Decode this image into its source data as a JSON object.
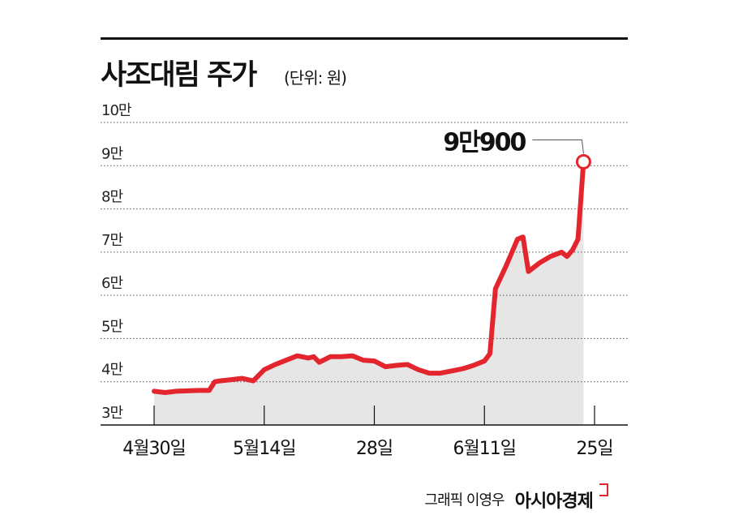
{
  "title": "사조대림 주가",
  "unit_label": "(단위: 원)",
  "credit": {
    "author": "그래픽 이영우",
    "brand": "아시아경제"
  },
  "colors": {
    "line": "#e3262d",
    "area": "#e6e6e6",
    "grid": "#555555",
    "axis": "#111111"
  },
  "chart_data": {
    "type": "area",
    "y_ticks": [
      {
        "value": 30000,
        "label": "3만"
      },
      {
        "value": 40000,
        "label": "4만"
      },
      {
        "value": 50000,
        "label": "5만"
      },
      {
        "value": 60000,
        "label": "6만"
      },
      {
        "value": 70000,
        "label": "7만"
      },
      {
        "value": 80000,
        "label": "8만"
      },
      {
        "value": 90000,
        "label": "9만"
      },
      {
        "value": 100000,
        "label": "10만"
      }
    ],
    "ylim": [
      30000,
      100000
    ],
    "x_ticks": [
      {
        "index": 0,
        "label": "4월30일"
      },
      {
        "index": 10,
        "label": "5월14일"
      },
      {
        "index": 20,
        "label": "28일"
      },
      {
        "index": 30,
        "label": "6월11일"
      },
      {
        "index": 40,
        "label": "25일"
      }
    ],
    "xlim": [
      0,
      40
    ],
    "series": [
      {
        "points": [
          [
            0,
            37800
          ],
          [
            1,
            37500
          ],
          [
            2,
            37800
          ],
          [
            3,
            37900
          ],
          [
            4,
            38000
          ],
          [
            5,
            38000
          ],
          [
            5.5,
            40000
          ],
          [
            6,
            40200
          ],
          [
            7,
            40500
          ],
          [
            8,
            40800
          ],
          [
            8.5,
            40500
          ],
          [
            9,
            40200
          ],
          [
            10,
            42800
          ],
          [
            11,
            44000
          ],
          [
            12,
            45000
          ],
          [
            13,
            46000
          ],
          [
            14,
            45500
          ],
          [
            14.5,
            45800
          ],
          [
            15,
            44500
          ],
          [
            16,
            45800
          ],
          [
            17,
            45800
          ],
          [
            18,
            46000
          ],
          [
            19,
            45000
          ],
          [
            20,
            44800
          ],
          [
            21,
            43500
          ],
          [
            22,
            43800
          ],
          [
            23,
            44000
          ],
          [
            24,
            42800
          ],
          [
            25,
            42000
          ],
          [
            26,
            42000
          ],
          [
            27,
            42500
          ],
          [
            28,
            43000
          ],
          [
            29,
            43800
          ],
          [
            30,
            44800
          ],
          [
            30.5,
            46500
          ],
          [
            31,
            61500
          ],
          [
            32,
            67000
          ],
          [
            33,
            73000
          ],
          [
            33.5,
            73500
          ],
          [
            34,
            65500
          ],
          [
            35,
            67500
          ],
          [
            36,
            69000
          ],
          [
            37,
            70000
          ],
          [
            37.5,
            69000
          ],
          [
            38,
            70500
          ],
          [
            38.5,
            73000
          ],
          [
            39,
            90900
          ]
        ]
      }
    ],
    "annotation": {
      "index": 39,
      "value": 90900,
      "label": "9만900"
    },
    "grid": true
  }
}
